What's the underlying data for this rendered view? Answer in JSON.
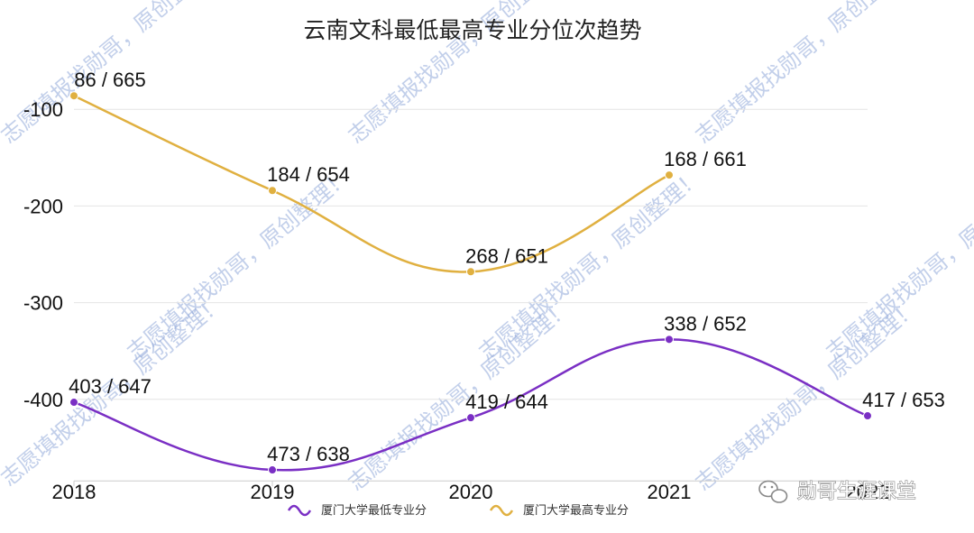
{
  "chart_data": {
    "type": "line",
    "title": "云南文科最低最高专业分位次趋势",
    "categories": [
      "2018",
      "2019",
      "2020",
      "2021",
      "2022"
    ],
    "ylim": [
      -475,
      -75
    ],
    "yticks": [
      "-100",
      "-200",
      "-300",
      "-400"
    ],
    "ytick_values": [
      -100,
      -200,
      -300,
      -400
    ],
    "grid": true,
    "legend_position": "bottom",
    "series": [
      {
        "name": "厦门大学最低专业分",
        "color": "#7a2fc4",
        "values": [
          -403,
          -473,
          -419,
          -338,
          -417
        ],
        "labels": [
          "403 / 647",
          "473 / 638",
          "419 / 644",
          "338 / 652",
          "417 / 653"
        ]
      },
      {
        "name": "厦门大学最高专业分",
        "color": "#e0b040",
        "values": [
          -86,
          -184,
          -268,
          -168,
          null
        ],
        "labels": [
          "86 / 665",
          "184 / 654",
          "268 / 651",
          "168 / 661",
          null
        ]
      }
    ]
  },
  "watermark": {
    "text": "志愿填报找勋哥，原创整理！"
  },
  "brand": {
    "text": "勋哥生涯课堂",
    "icon": "wechat-icon"
  }
}
